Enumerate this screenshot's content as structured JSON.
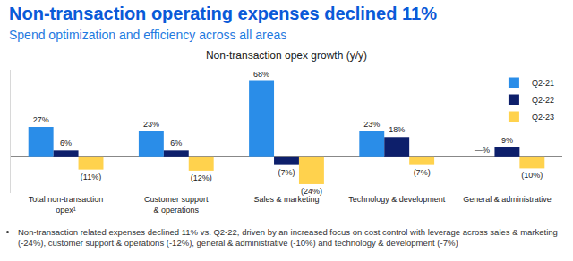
{
  "header": {
    "title": "Non-transaction operating expenses declined 11%",
    "subtitle": "Spend optimization and efficiency across all areas"
  },
  "chart_data": {
    "type": "bar",
    "title": "Non-transaction opex growth (y/y)",
    "categories": [
      "Total non-transaction opex¹",
      "Customer support & operations",
      "Sales & marketing",
      "Technology & development",
      "General & administrative"
    ],
    "series": [
      {
        "name": "Q2-21",
        "color": "#2a8de8",
        "values": [
          27,
          23,
          68,
          23,
          0
        ],
        "value_labels": [
          "27%",
          "23%",
          "68%",
          "23%",
          "—%"
        ]
      },
      {
        "name": "Q2-22",
        "color": "#0d1f6b",
        "values": [
          6,
          6,
          -7,
          18,
          9
        ],
        "value_labels": [
          "6%",
          "6%",
          "(7%)",
          "18%",
          "9%"
        ]
      },
      {
        "name": "Q2-23",
        "color": "#ffd24d",
        "values": [
          -11,
          -12,
          -24,
          -7,
          -10
        ],
        "value_labels": [
          "(11%)",
          "(12%)",
          "(24%)",
          "(7%)",
          "(10%)"
        ]
      }
    ],
    "ylim": [
      -32,
      78
    ],
    "grid": false,
    "legend": "top right",
    "data_labels": true,
    "tick_labels": "x"
  },
  "notes": [
    "Non-transaction related expenses declined 11% vs. Q2-22, driven by an increased focus on cost control with leverage across sales & marketing (-24%), customer support & operations (-12%), general & administrative (-10%) and technology & development (-7%)"
  ]
}
